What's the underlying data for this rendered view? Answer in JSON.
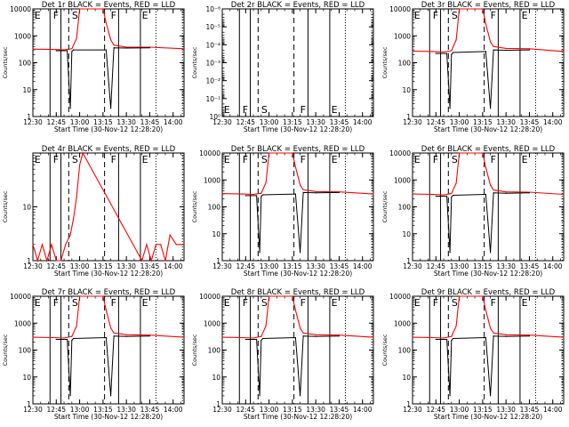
{
  "colors": {
    "events": "#000000",
    "lld": "#ff0000",
    "background": "#ffffff"
  },
  "chart_data": [
    {
      "type": "line",
      "title": "Det 1r BLACK = Events, RED = LLD",
      "xlabel": "Start Time (30-Nov-12 12:28:20)",
      "ylabel": "Counts/sec",
      "yscale": "log",
      "ylim": [
        1,
        10000
      ],
      "xlim": [
        "12:30",
        "14:07"
      ],
      "yticks": [
        "1",
        "10",
        "100",
        "1000",
        "10000"
      ],
      "xticks": [
        "12:30",
        "12:45",
        "13:00",
        "13:15",
        "13:30",
        "13:45",
        "14:00"
      ],
      "region_markers": [
        "E",
        "F",
        "S",
        "F",
        "E"
      ],
      "series": [
        {
          "color": "red",
          "x": [
            "12:30",
            "12:43",
            "12:50",
            "12:55",
            "12:58",
            "13:00",
            "13:15",
            "13:17",
            "13:20",
            "13:22",
            "13:30",
            "13:45",
            "14:07"
          ],
          "y": [
            320,
            310,
            300,
            330,
            800,
            10000,
            10000,
            3000,
            700,
            450,
            380,
            380,
            330
          ]
        },
        {
          "color": "black",
          "x": [
            "12:45",
            "12:52",
            "12:54",
            "12:55",
            "12:56",
            "13:17",
            "13:20",
            "13:22",
            "13:30",
            "13:45"
          ],
          "y": [
            280,
            280,
            2,
            260,
            300,
            300,
            2,
            360,
            350,
            360
          ]
        }
      ]
    },
    {
      "type": "line",
      "title": "Det 2r BLACK = Events, RED = LLD",
      "xlabel": "Start Time (30-Nov-12 12:28:20)",
      "ylabel": "Counts/sec",
      "yscale": "log",
      "ylim": [
        1,
        1e-06
      ],
      "xlim": [
        "12:30",
        "14:07"
      ],
      "yticks": [
        "10⁰",
        "10⁻¹",
        "10⁻²",
        "10⁻³",
        "10⁻⁴",
        "10⁻⁵",
        "10⁻⁶"
      ],
      "xticks": [
        "12:30",
        "12:45",
        "13:00",
        "13:15",
        "13:30",
        "13:45",
        "14:00"
      ],
      "region_markers": [
        "E",
        "F",
        "S",
        "F",
        "E"
      ],
      "series": []
    },
    {
      "type": "line",
      "title": "Det 3r BLACK = Events, RED = LLD",
      "xlabel": "Start Time (30-Nov-12 12:28:20)",
      "ylabel": "Counts/sec",
      "yscale": "log",
      "ylim": [
        1,
        10000
      ],
      "xlim": [
        "12:30",
        "14:07"
      ],
      "yticks": [
        "1",
        "10",
        "100",
        "1000",
        "10000"
      ],
      "xticks": [
        "12:30",
        "12:45",
        "13:00",
        "13:15",
        "13:30",
        "13:45",
        "14:00"
      ],
      "region_markers": [
        "E",
        "F",
        "S",
        "F",
        "E"
      ],
      "series": [
        {
          "color": "red",
          "x": [
            "12:30",
            "12:43",
            "12:50",
            "12:55",
            "12:58",
            "13:00",
            "13:15",
            "13:17",
            "13:20",
            "13:22",
            "13:30",
            "13:45",
            "14:07"
          ],
          "y": [
            270,
            260,
            250,
            280,
            700,
            10000,
            10000,
            2800,
            600,
            400,
            340,
            330,
            260
          ]
        },
        {
          "color": "black",
          "x": [
            "12:45",
            "12:52",
            "12:54",
            "12:55",
            "12:56",
            "13:17",
            "13:20",
            "13:22",
            "13:30",
            "13:45"
          ],
          "y": [
            220,
            220,
            2,
            200,
            240,
            260,
            2,
            300,
            290,
            300
          ]
        }
      ]
    },
    {
      "type": "line",
      "title": "Det 4r BLACK = Events, RED = LLD",
      "xlabel": "Start Time (30-Nov-12 12:28:20)",
      "ylabel": "Counts/sec",
      "yscale": "log",
      "ylim": [
        1,
        100
      ],
      "xlim": [
        "12:30",
        "14:07"
      ],
      "yticks": [
        "1",
        "10"
      ],
      "xticks": [
        "12:30",
        "12:45",
        "13:00",
        "13:15",
        "13:30",
        "13:45",
        "14:00"
      ],
      "region_markers": [
        "E",
        "F",
        "S",
        "F",
        "E"
      ],
      "series": [
        {
          "color": "red",
          "x": [
            "12:30",
            "12:33",
            "12:36",
            "12:39",
            "12:42",
            "12:45",
            "12:48",
            "12:51",
            "12:54",
            "12:56",
            "12:58",
            "13:00",
            "13:02",
            "13:40",
            "13:43",
            "13:46",
            "13:49",
            "13:52",
            "13:55",
            "13:58",
            "14:02",
            "14:07"
          ],
          "y": [
            2,
            1,
            2,
            1,
            2,
            1,
            1,
            2,
            3,
            6,
            15,
            60,
            100,
            1,
            2,
            1,
            2,
            2,
            1,
            3,
            2,
            2
          ]
        }
      ]
    },
    {
      "type": "line",
      "title": "Det 5r BLACK = Events, RED = LLD",
      "xlabel": "Start Time (30-Nov-12 12:28:20)",
      "ylabel": "Counts/sec",
      "yscale": "log",
      "ylim": [
        1,
        10000
      ],
      "xlim": [
        "12:30",
        "14:07"
      ],
      "yticks": [
        "1",
        "10",
        "100",
        "1000",
        "10000"
      ],
      "xticks": [
        "12:30",
        "12:45",
        "13:00",
        "13:15",
        "13:30",
        "13:45",
        "14:00"
      ],
      "region_markers": [
        "E",
        "F",
        "S",
        "F",
        "E"
      ],
      "series": [
        {
          "color": "red",
          "x": [
            "12:30",
            "12:43",
            "12:50",
            "12:55",
            "12:58",
            "13:00",
            "13:15",
            "13:17",
            "13:20",
            "13:22",
            "13:30",
            "13:45",
            "14:07"
          ],
          "y": [
            310,
            300,
            290,
            320,
            780,
            10000,
            10000,
            3000,
            650,
            430,
            370,
            360,
            300
          ]
        },
        {
          "color": "black",
          "x": [
            "12:45",
            "12:52",
            "12:54",
            "12:55",
            "12:56",
            "13:17",
            "13:20",
            "13:22",
            "13:30",
            "13:45"
          ],
          "y": [
            260,
            260,
            2,
            240,
            280,
            300,
            2,
            340,
            330,
            340
          ]
        }
      ]
    },
    {
      "type": "line",
      "title": "Det 6r BLACK = Events, RED = LLD",
      "xlabel": "Start Time (30-Nov-12 12:28:20)",
      "ylabel": "Counts/sec",
      "yscale": "log",
      "ylim": [
        1,
        10000
      ],
      "xlim": [
        "12:30",
        "14:07"
      ],
      "yticks": [
        "1",
        "10",
        "100",
        "1000",
        "10000"
      ],
      "xticks": [
        "12:30",
        "12:45",
        "13:00",
        "13:15",
        "13:30",
        "13:45",
        "14:00"
      ],
      "region_markers": [
        "E",
        "F",
        "S",
        "F",
        "E"
      ],
      "series": [
        {
          "color": "red",
          "x": [
            "12:30",
            "12:43",
            "12:50",
            "12:55",
            "12:58",
            "13:00",
            "13:15",
            "13:17",
            "13:20",
            "13:22",
            "13:30",
            "13:45",
            "14:07"
          ],
          "y": [
            300,
            290,
            280,
            310,
            760,
            10000,
            10000,
            2900,
            640,
            420,
            360,
            350,
            290
          ]
        },
        {
          "color": "black",
          "x": [
            "12:45",
            "12:52",
            "12:54",
            "12:55",
            "12:56",
            "13:17",
            "13:20",
            "13:22",
            "13:30",
            "13:45"
          ],
          "y": [
            250,
            250,
            2,
            230,
            270,
            290,
            2,
            330,
            320,
            330
          ]
        }
      ]
    },
    {
      "type": "line",
      "title": "Det 7r BLACK = Events, RED = LLD",
      "xlabel": "Start Time (30-Nov-12 12:28:20)",
      "ylabel": "Counts/sec",
      "yscale": "log",
      "ylim": [
        1,
        10000
      ],
      "xlim": [
        "12:30",
        "14:07"
      ],
      "yticks": [
        "1",
        "10",
        "100",
        "1000",
        "10000"
      ],
      "xticks": [
        "12:30",
        "12:45",
        "13:00",
        "13:15",
        "13:30",
        "13:45",
        "14:00"
      ],
      "region_markers": [
        "E",
        "F",
        "S",
        "F",
        "E"
      ],
      "series": [
        {
          "color": "red",
          "x": [
            "12:30",
            "12:43",
            "12:50",
            "12:55",
            "12:58",
            "13:00",
            "13:15",
            "13:17",
            "13:20",
            "13:22",
            "13:30",
            "13:45",
            "14:07"
          ],
          "y": [
            300,
            290,
            280,
            320,
            780,
            10000,
            10000,
            3000,
            650,
            430,
            370,
            360,
            300
          ]
        },
        {
          "color": "black",
          "x": [
            "12:45",
            "12:52",
            "12:54",
            "12:55",
            "12:56",
            "13:17",
            "13:20",
            "13:22",
            "13:30",
            "13:45"
          ],
          "y": [
            250,
            250,
            2,
            230,
            270,
            290,
            2,
            330,
            320,
            330
          ]
        }
      ]
    },
    {
      "type": "line",
      "title": "Det 8r BLACK = Events, RED = LLD",
      "xlabel": "Start Time (30-Nov-12 12:28:20)",
      "ylabel": "Counts/sec",
      "yscale": "log",
      "ylim": [
        1,
        10000
      ],
      "xlim": [
        "12:30",
        "14:07"
      ],
      "yticks": [
        "1",
        "10",
        "100",
        "1000",
        "10000"
      ],
      "xticks": [
        "12:30",
        "12:45",
        "13:00",
        "13:15",
        "13:30",
        "13:45",
        "14:00"
      ],
      "region_markers": [
        "E",
        "F",
        "S",
        "F",
        "E"
      ],
      "series": [
        {
          "color": "red",
          "x": [
            "12:30",
            "12:43",
            "12:50",
            "12:55",
            "12:58",
            "13:00",
            "13:15",
            "13:17",
            "13:20",
            "13:22",
            "13:30",
            "13:45",
            "14:07"
          ],
          "y": [
            300,
            290,
            280,
            320,
            780,
            10000,
            10000,
            3000,
            650,
            430,
            370,
            360,
            300
          ]
        },
        {
          "color": "black",
          "x": [
            "12:45",
            "12:52",
            "12:54",
            "12:55",
            "12:56",
            "13:17",
            "13:20",
            "13:22",
            "13:30",
            "13:45"
          ],
          "y": [
            250,
            250,
            2,
            230,
            270,
            290,
            2,
            330,
            320,
            330
          ]
        }
      ]
    },
    {
      "type": "line",
      "title": "Det 9r BLACK = Events, RED = LLD",
      "xlabel": "Start Time (30-Nov-12 12:28:20)",
      "ylabel": "Counts/sec",
      "yscale": "log",
      "ylim": [
        1,
        10000
      ],
      "xlim": [
        "12:30",
        "14:07"
      ],
      "yticks": [
        "1",
        "10",
        "100",
        "1000",
        "10000"
      ],
      "xticks": [
        "12:30",
        "12:45",
        "13:00",
        "13:15",
        "13:30",
        "13:45",
        "14:00"
      ],
      "region_markers": [
        "E",
        "F",
        "S",
        "F",
        "E"
      ],
      "series": [
        {
          "color": "red",
          "x": [
            "12:30",
            "12:43",
            "12:50",
            "12:55",
            "12:58",
            "13:00",
            "13:15",
            "13:17",
            "13:20",
            "13:22",
            "13:30",
            "13:45",
            "14:07"
          ],
          "y": [
            300,
            290,
            280,
            320,
            780,
            10000,
            10000,
            3000,
            650,
            430,
            370,
            360,
            300
          ]
        },
        {
          "color": "black",
          "x": [
            "12:45",
            "12:52",
            "12:54",
            "12:55",
            "12:56",
            "13:17",
            "13:20",
            "13:22",
            "13:30",
            "13:45"
          ],
          "y": [
            250,
            250,
            2,
            230,
            270,
            290,
            2,
            330,
            320,
            330
          ]
        }
      ]
    }
  ]
}
